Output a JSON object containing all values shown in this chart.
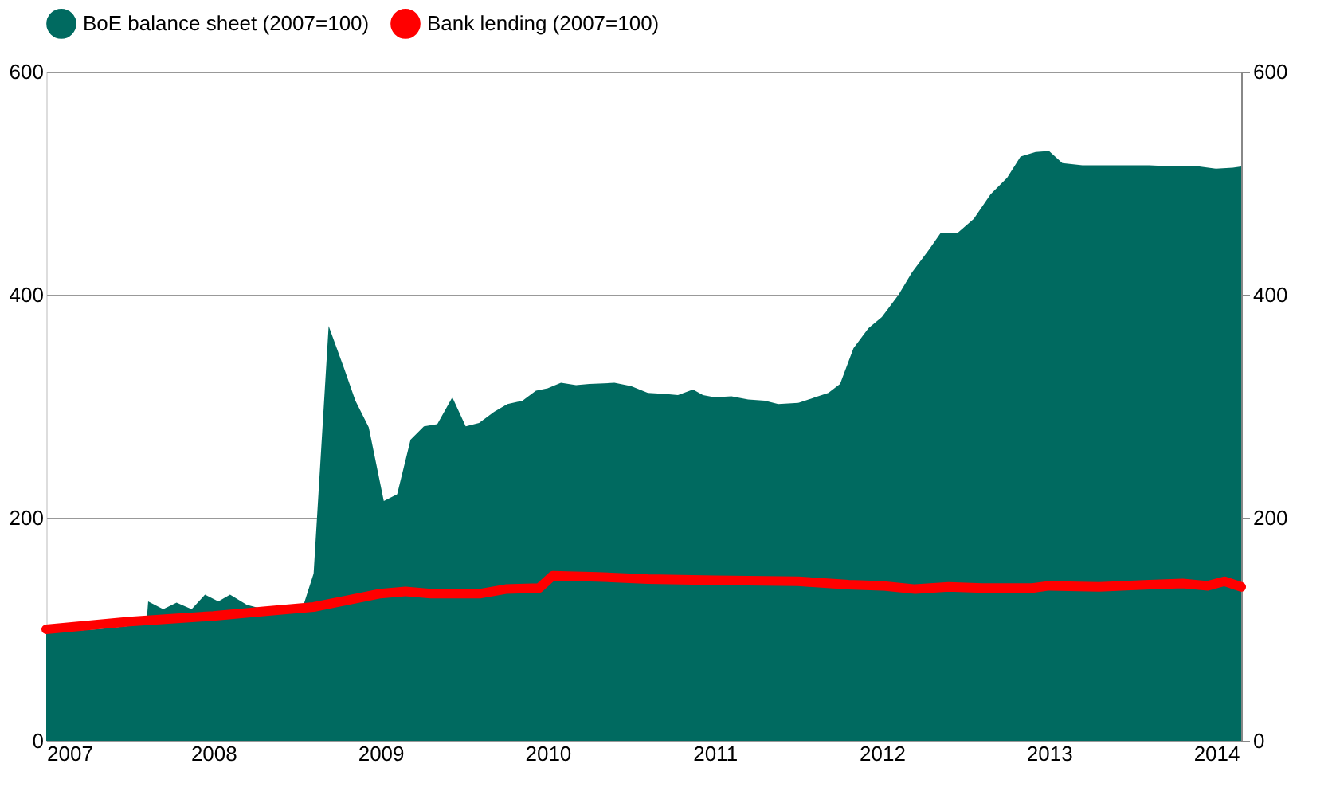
{
  "chart_data": {
    "type": "area",
    "xlim": [
      2007,
      2014.15
    ],
    "xticks": [
      2007,
      2008,
      2009,
      2010,
      2011,
      2012,
      2013,
      2014
    ],
    "ylim": [
      0,
      600
    ],
    "yticks": [
      0,
      200,
      400,
      600
    ],
    "y2lim": [
      0,
      600
    ],
    "y2ticks": [
      0,
      200,
      400,
      600
    ],
    "grid": "y",
    "legend": "top",
    "series": [
      {
        "name": "BoE balance sheet (2007=100)",
        "color": "#006a60",
        "x": [
          2007.0,
          2007.3,
          2007.5,
          2007.6,
          2007.61,
          2007.7,
          2007.78,
          2007.87,
          2007.95,
          2008.03,
          2008.1,
          2008.2,
          2008.3,
          2008.38,
          2008.5,
          2008.54,
          2008.6,
          2008.69,
          2008.78,
          2008.85,
          2008.93,
          2009.02,
          2009.1,
          2009.18,
          2009.26,
          2009.34,
          2009.43,
          2009.51,
          2009.59,
          2009.68,
          2009.76,
          2009.85,
          2009.93,
          2010.0,
          2010.08,
          2010.17,
          2010.25,
          2010.4,
          2010.5,
          2010.6,
          2010.7,
          2010.78,
          2010.87,
          2010.93,
          2011.0,
          2011.1,
          2011.2,
          2011.3,
          2011.38,
          2011.5,
          2011.6,
          2011.68,
          2011.75,
          2011.83,
          2011.92,
          2012.0,
          2012.1,
          2012.18,
          2012.28,
          2012.35,
          2012.45,
          2012.55,
          2012.65,
          2012.75,
          2012.83,
          2012.92,
          2013.0,
          2013.08,
          2013.2,
          2013.4,
          2013.6,
          2013.75,
          2013.9,
          2014.0,
          2014.1,
          2014.15
        ],
        "values": [
          97,
          100,
          103,
          105,
          125,
          118,
          124,
          118,
          131,
          125,
          131,
          122,
          118,
          115,
          120,
          122,
          150,
          372,
          335,
          305,
          281,
          215,
          221,
          270,
          282,
          284,
          308,
          282,
          285,
          295,
          302,
          305,
          314,
          316,
          321,
          319,
          320,
          321,
          318,
          312,
          311,
          310,
          315,
          310,
          308,
          309,
          306,
          305,
          302,
          303,
          308,
          312,
          320,
          352,
          370,
          380,
          400,
          420,
          440,
          455,
          455,
          468,
          490,
          505,
          524,
          528,
          529,
          518,
          516,
          516,
          516,
          515,
          515,
          513,
          514,
          515
        ]
      },
      {
        "name": "Bank lending (2007=100)",
        "type": "line",
        "color": "#ff0000",
        "x": [
          2007.0,
          2007.5,
          2007.8,
          2008.0,
          2008.3,
          2008.6,
          2008.8,
          2009.0,
          2009.15,
          2009.3,
          2009.6,
          2009.75,
          2009.95,
          2010.03,
          2010.3,
          2010.6,
          2011.0,
          2011.5,
          2011.8,
          2012.0,
          2012.2,
          2012.4,
          2012.6,
          2012.9,
          2013.0,
          2013.3,
          2013.6,
          2013.8,
          2013.95,
          2014.05,
          2014.15
        ],
        "values": [
          100,
          107,
          110,
          112,
          116,
          120,
          126,
          132,
          134,
          132,
          132,
          136,
          137,
          148,
          147,
          145,
          144,
          143,
          140,
          139,
          136,
          138,
          137,
          137,
          139,
          138,
          140,
          141,
          139,
          143,
          138
        ]
      }
    ]
  }
}
